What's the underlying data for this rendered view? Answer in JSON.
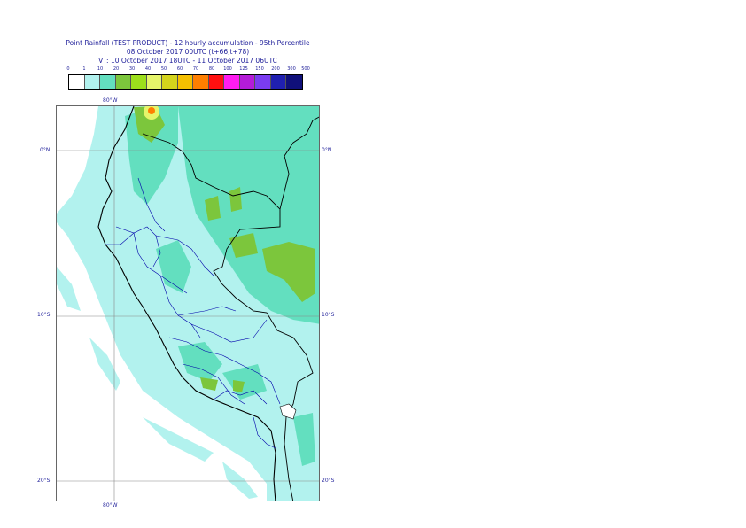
{
  "title_lines": [
    "Point Rainfall (TEST PRODUCT) - 12 hourly accumulation - 95th Percentile",
    "08 October 2017 00UTC (t+66,t+78)",
    "VT: 10 October 2017 18UTC - 11 October 2017 06UTC"
  ],
  "legend": {
    "thresholds": [
      "0",
      "1",
      "10",
      "20",
      "30",
      "40",
      "50",
      "60",
      "70",
      "80",
      "100",
      "125",
      "150",
      "200",
      "300",
      "500"
    ],
    "colors": [
      "#ffffff",
      "#b2f2ee",
      "#63dfbf",
      "#7cc63c",
      "#9ddf1c",
      "#e6f56a",
      "#d4d41c",
      "#f5c000",
      "#ff7f00",
      "#ff1010",
      "#ff1cf0",
      "#b41cd8",
      "#7a3cf0",
      "#2020b0",
      "#10107a"
    ]
  },
  "map": {
    "lat_labels": [
      "0°N",
      "10°S",
      "20°S"
    ],
    "lon_labels": [
      "80°W",
      "80°W"
    ],
    "colors": {
      "sea_rain": "#b2f2ee",
      "land_light": "#b2f2ee",
      "land_medium": "#63dfbf",
      "land_heavy": "#7cc63c",
      "heavy_cell": "#e6f56a",
      "extreme_cell": "#ff7f00",
      "coast": "#000000",
      "borders": "#0000aa",
      "grid": "#888888"
    }
  }
}
